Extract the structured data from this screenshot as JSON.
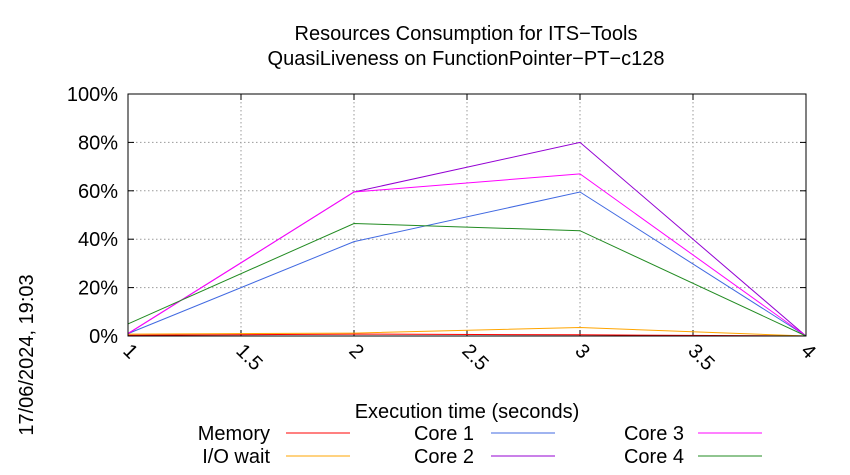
{
  "chart_data": {
    "type": "line",
    "title": "Resources Consumption for ITS−Tools",
    "subtitle": "QuasiLiveness on FunctionPointer−PT−c128",
    "xlabel": "Execution time (seconds)",
    "ylabel": "",
    "side_label": "17/06/2024, 19:03",
    "xlim": [
      1,
      4
    ],
    "ylim": [
      0,
      100
    ],
    "x_ticks": [
      {
        "value": 1,
        "label": "1"
      },
      {
        "value": 1.5,
        "label": "1.5"
      },
      {
        "value": 2,
        "label": "2"
      },
      {
        "value": 2.5,
        "label": "2.5"
      },
      {
        "value": 3,
        "label": "3"
      },
      {
        "value": 3.5,
        "label": "3.5"
      },
      {
        "value": 4,
        "label": "4"
      }
    ],
    "y_ticks": [
      {
        "value": 0,
        "label": "0%"
      },
      {
        "value": 20,
        "label": "20%"
      },
      {
        "value": 40,
        "label": "40%"
      },
      {
        "value": 60,
        "label": "60%"
      },
      {
        "value": 80,
        "label": "80%"
      },
      {
        "value": 100,
        "label": "100%"
      }
    ],
    "grid": true,
    "legend_position": "bottom",
    "series": [
      {
        "name": "Memory",
        "color": "#ff0000",
        "x": [
          1,
          2,
          3,
          4
        ],
        "y": [
          0.3,
          0.8,
          0.5,
          0
        ]
      },
      {
        "name": "I/O wait",
        "color": "#ffa500",
        "x": [
          1,
          2,
          3,
          4
        ],
        "y": [
          0.8,
          1.2,
          3.5,
          0
        ]
      },
      {
        "name": "Core 1",
        "color": "#4169e1",
        "x": [
          1,
          2,
          3,
          4
        ],
        "y": [
          1,
          39,
          59.5,
          0
        ]
      },
      {
        "name": "Core 2",
        "color": "#9400d3",
        "x": [
          1,
          2,
          3,
          4
        ],
        "y": [
          1,
          59.5,
          80,
          0
        ]
      },
      {
        "name": "Core 3",
        "color": "#ff00ff",
        "x": [
          1,
          2,
          3,
          4
        ],
        "y": [
          1,
          59.5,
          67,
          0
        ]
      },
      {
        "name": "Core 4",
        "color": "#228b22",
        "x": [
          1,
          2,
          3,
          4
        ],
        "y": [
          5,
          46.5,
          43.5,
          0
        ]
      }
    ]
  }
}
